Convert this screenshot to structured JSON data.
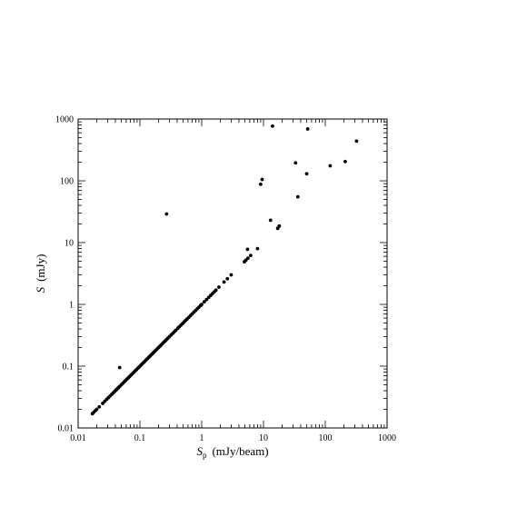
{
  "chart_data": {
    "type": "scatter",
    "title": "",
    "xlabel": {
      "symbol": "S",
      "subscript": "p",
      "unit": "(mJy/beam)"
    },
    "ylabel": {
      "symbol": "S",
      "unit": "(mJy)"
    },
    "xscale": "log",
    "yscale": "log",
    "xlim": [
      0.01,
      1000
    ],
    "ylim": [
      0.01,
      1000
    ],
    "grid": false,
    "legend": "none",
    "marker_color": "#000000",
    "x_ticks": [
      {
        "value": 0.01,
        "label": "0.01"
      },
      {
        "value": 0.1,
        "label": "0.1"
      },
      {
        "value": 1,
        "label": "1"
      },
      {
        "value": 10,
        "label": "10"
      },
      {
        "value": 100,
        "label": "100"
      },
      {
        "value": 1000,
        "label": "1000"
      }
    ],
    "y_ticks": [
      {
        "value": 0.01,
        "label": "0.01"
      },
      {
        "value": 0.1,
        "label": "0.1"
      },
      {
        "value": 1,
        "label": "1"
      },
      {
        "value": 10,
        "label": "10"
      },
      {
        "value": 100,
        "label": "100"
      },
      {
        "value": 1000,
        "label": "1000"
      }
    ],
    "series": [
      {
        "points": [
          [
            0.017,
            0.017
          ],
          [
            0.018,
            0.018
          ],
          [
            0.019,
            0.019
          ],
          [
            0.02,
            0.02
          ],
          [
            0.022,
            0.022
          ],
          [
            0.025,
            0.025
          ],
          [
            0.027,
            0.027
          ],
          [
            0.029,
            0.029
          ],
          [
            0.031,
            0.031
          ],
          [
            0.033,
            0.033
          ],
          [
            0.035,
            0.035
          ],
          [
            0.037,
            0.037
          ],
          [
            0.039,
            0.039
          ],
          [
            0.041,
            0.041
          ],
          [
            0.043,
            0.043
          ],
          [
            0.045,
            0.045
          ],
          [
            0.047,
            0.047
          ],
          [
            0.05,
            0.05
          ],
          [
            0.053,
            0.053
          ],
          [
            0.056,
            0.056
          ],
          [
            0.059,
            0.059
          ],
          [
            0.062,
            0.062
          ],
          [
            0.065,
            0.065
          ],
          [
            0.068,
            0.068
          ],
          [
            0.072,
            0.072
          ],
          [
            0.076,
            0.076
          ],
          [
            0.08,
            0.08
          ],
          [
            0.084,
            0.084
          ],
          [
            0.088,
            0.088
          ],
          [
            0.093,
            0.093
          ],
          [
            0.098,
            0.098
          ],
          [
            0.103,
            0.103
          ],
          [
            0.108,
            0.108
          ],
          [
            0.114,
            0.114
          ],
          [
            0.12,
            0.12
          ],
          [
            0.126,
            0.126
          ],
          [
            0.133,
            0.133
          ],
          [
            0.14,
            0.14
          ],
          [
            0.147,
            0.147
          ],
          [
            0.155,
            0.155
          ],
          [
            0.163,
            0.163
          ],
          [
            0.171,
            0.171
          ],
          [
            0.18,
            0.18
          ],
          [
            0.19,
            0.19
          ],
          [
            0.2,
            0.2
          ],
          [
            0.21,
            0.21
          ],
          [
            0.22,
            0.22
          ],
          [
            0.232,
            0.232
          ],
          [
            0.244,
            0.244
          ],
          [
            0.256,
            0.256
          ],
          [
            0.27,
            0.27
          ],
          [
            0.284,
            0.284
          ],
          [
            0.3,
            0.3
          ],
          [
            0.32,
            0.32
          ],
          [
            0.34,
            0.34
          ],
          [
            0.36,
            0.36
          ],
          [
            0.38,
            0.38
          ],
          [
            0.41,
            0.41
          ],
          [
            0.43,
            0.43
          ],
          [
            0.46,
            0.46
          ],
          [
            0.49,
            0.49
          ],
          [
            0.52,
            0.52
          ],
          [
            0.55,
            0.55
          ],
          [
            0.58,
            0.58
          ],
          [
            0.62,
            0.62
          ],
          [
            0.66,
            0.66
          ],
          [
            0.7,
            0.7
          ],
          [
            0.75,
            0.75
          ],
          [
            0.8,
            0.8
          ],
          [
            0.85,
            0.85
          ],
          [
            0.9,
            0.9
          ],
          [
            0.96,
            0.96
          ],
          [
            1.0,
            1.0
          ],
          [
            1.1,
            1.1
          ],
          [
            1.2,
            1.2
          ],
          [
            1.3,
            1.3
          ],
          [
            1.4,
            1.4
          ],
          [
            1.5,
            1.5
          ],
          [
            1.6,
            1.6
          ],
          [
            1.7,
            1.7
          ],
          [
            1.9,
            1.9
          ],
          [
            2.3,
            2.3
          ],
          [
            2.6,
            2.6
          ],
          [
            3.0,
            3.0
          ],
          [
            4.9,
            4.9
          ],
          [
            5.2,
            5.2
          ],
          [
            5.6,
            5.6
          ],
          [
            6.2,
            6.2
          ],
          [
            0.047,
            0.095
          ],
          [
            0.27,
            29
          ],
          [
            5.5,
            7.8
          ],
          [
            8.0,
            8.0
          ],
          [
            9.0,
            88
          ],
          [
            9.5,
            105
          ],
          [
            13,
            23
          ],
          [
            14,
            770
          ],
          [
            17,
            17
          ],
          [
            18,
            18.5
          ],
          [
            33,
            195
          ],
          [
            36,
            55
          ],
          [
            50,
            130
          ],
          [
            52,
            690
          ],
          [
            120,
            175
          ],
          [
            210,
            205
          ],
          [
            320,
            440
          ]
        ]
      }
    ]
  }
}
